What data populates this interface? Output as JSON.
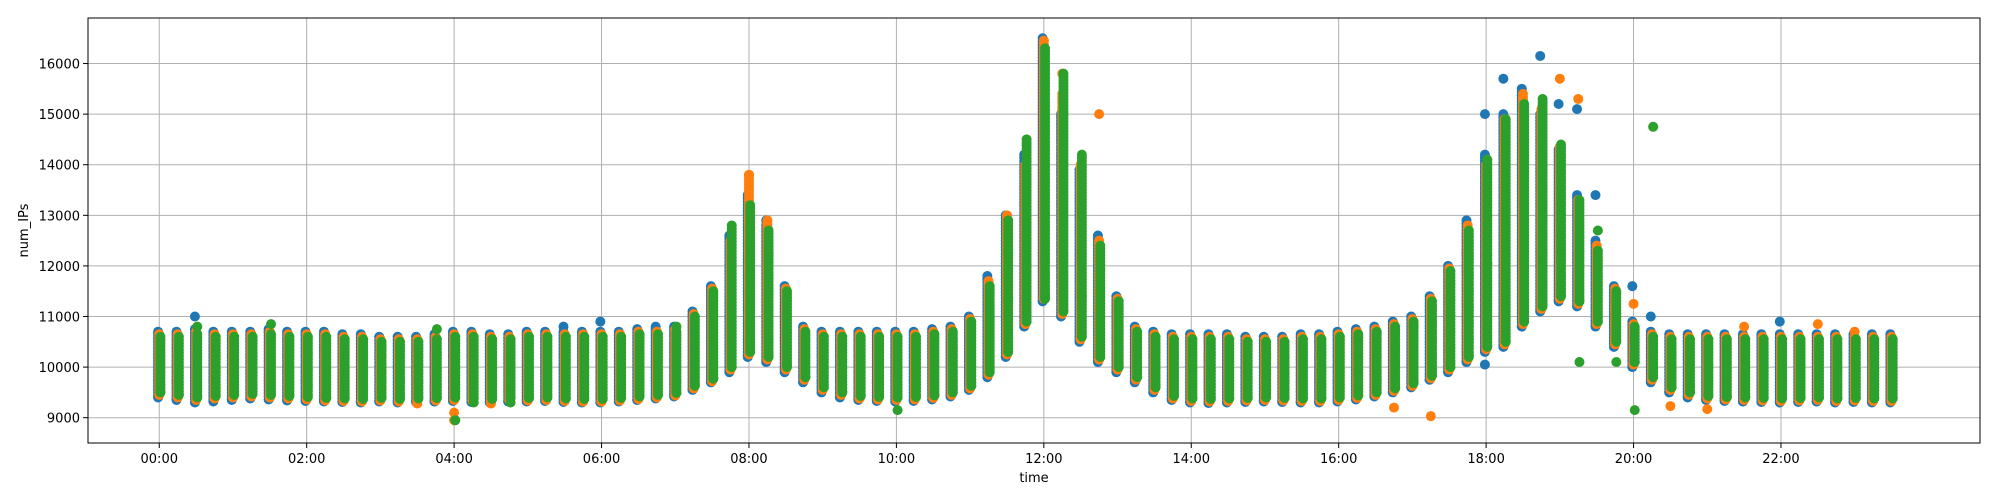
{
  "chart_data": {
    "type": "scatter",
    "title": "",
    "xlabel": "time",
    "ylabel": "num_IPs",
    "grid": true,
    "legend": "none",
    "x_unit": "minutes since 00:00",
    "xlim": [
      -58,
      1482
    ],
    "ylim": [
      8500,
      16900
    ],
    "x_ticks": [
      {
        "value": 0,
        "label": "00:00"
      },
      {
        "value": 120,
        "label": "02:00"
      },
      {
        "value": 240,
        "label": "04:00"
      },
      {
        "value": 360,
        "label": "06:00"
      },
      {
        "value": 480,
        "label": "08:00"
      },
      {
        "value": 600,
        "label": "10:00"
      },
      {
        "value": 720,
        "label": "12:00"
      },
      {
        "value": 840,
        "label": "14:00"
      },
      {
        "value": 960,
        "label": "16:00"
      },
      {
        "value": 1080,
        "label": "18:00"
      },
      {
        "value": 1200,
        "label": "20:00"
      },
      {
        "value": 1320,
        "label": "22:00"
      }
    ],
    "y_ticks": [
      {
        "value": 9000,
        "label": "9000"
      },
      {
        "value": 10000,
        "label": "10000"
      },
      {
        "value": 11000,
        "label": "11000"
      },
      {
        "value": 12000,
        "label": "12000"
      },
      {
        "value": 13000,
        "label": "13000"
      },
      {
        "value": 14000,
        "label": "14000"
      },
      {
        "value": 15000,
        "label": "15000"
      },
      {
        "value": 16000,
        "label": "16000"
      }
    ],
    "interval_minutes": 15,
    "series": [
      {
        "name": "series-1",
        "color": "#1f77b4",
        "x": [
          0,
          15,
          30,
          45,
          60,
          75,
          90,
          105,
          120,
          135,
          150,
          165,
          180,
          195,
          210,
          225,
          240,
          255,
          270,
          285,
          300,
          315,
          330,
          345,
          360,
          375,
          390,
          405,
          420,
          435,
          450,
          465,
          480,
          495,
          510,
          525,
          540,
          555,
          570,
          585,
          600,
          615,
          630,
          645,
          660,
          675,
          690,
          705,
          720,
          735,
          750,
          765,
          780,
          795,
          810,
          825,
          840,
          855,
          870,
          885,
          900,
          915,
          930,
          945,
          960,
          975,
          990,
          1005,
          1020,
          1035,
          1050,
          1065,
          1080,
          1095,
          1110,
          1125,
          1140,
          1155,
          1170,
          1185,
          1200,
          1215,
          1230,
          1245,
          1260,
          1275,
          1290,
          1305,
          1320,
          1335,
          1350,
          1365,
          1380,
          1395,
          1410
        ],
        "low": [
          9400,
          9350,
          9300,
          9320,
          9350,
          9380,
          9360,
          9340,
          9330,
          9320,
          9310,
          9300,
          9320,
          9300,
          9310,
          9320,
          9330,
          9310,
          9300,
          9320,
          9320,
          9330,
          9310,
          9300,
          9300,
          9320,
          9350,
          9380,
          9420,
          9550,
          9700,
          9900,
          10200,
          10100,
          9900,
          9700,
          9500,
          9400,
          9350,
          9330,
          9320,
          9330,
          9360,
          9420,
          9550,
          9800,
          10200,
          10800,
          11300,
          11000,
          10500,
          10100,
          9900,
          9700,
          9500,
          9350,
          9300,
          9290,
          9300,
          9310,
          9320,
          9310,
          9300,
          9300,
          9320,
          9360,
          9420,
          9500,
          9600,
          9750,
          9900,
          10100,
          10300,
          10400,
          10800,
          11100,
          11300,
          11200,
          10800,
          10400,
          10000,
          9700,
          9500,
          9400,
          9350,
          9330,
          9320,
          9310,
          9300,
          9310,
          9320,
          9300,
          9310,
          9300,
          9300
        ],
        "high": [
          10700,
          10700,
          10750,
          10700,
          10700,
          10700,
          10750,
          10700,
          10700,
          10700,
          10650,
          10650,
          10600,
          10600,
          10600,
          10650,
          10700,
          10700,
          10650,
          10650,
          10700,
          10700,
          10700,
          10700,
          10700,
          10700,
          10750,
          10750,
          10800,
          11100,
          11600,
          12600,
          13400,
          12800,
          11600,
          10800,
          10700,
          10700,
          10700,
          10700,
          10700,
          10700,
          10750,
          10800,
          11000,
          11800,
          13000,
          14200,
          16500,
          15000,
          13900,
          12600,
          11400,
          10800,
          10700,
          10650,
          10650,
          10650,
          10650,
          10600,
          10600,
          10600,
          10650,
          10650,
          10700,
          10750,
          10800,
          10900,
          11000,
          11400,
          12000,
          12900,
          14200,
          15000,
          15500,
          15000,
          14300,
          13400,
          12500,
          11600,
          10900,
          10700,
          10650,
          10650,
          10650,
          10650,
          10650,
          10650,
          10650,
          10650,
          10650,
          10650,
          10650,
          10650,
          10650
        ],
        "outliers": [
          [
            30,
            11000
          ],
          [
            90,
            10700
          ],
          [
            330,
            10800
          ],
          [
            360,
            10900
          ],
          [
            405,
            10800
          ],
          [
            495,
            12900
          ],
          [
            1080,
            15000
          ],
          [
            1095,
            15700
          ],
          [
            1125,
            16150
          ],
          [
            1140,
            15200
          ],
          [
            1155,
            15100
          ],
          [
            1170,
            13400
          ],
          [
            1080,
            10050
          ],
          [
            1200,
            11600
          ],
          [
            1215,
            11000
          ],
          [
            1320,
            10900
          ]
        ]
      },
      {
        "name": "series-2",
        "color": "#ff7f0e",
        "x": [
          0,
          15,
          30,
          45,
          60,
          75,
          90,
          105,
          120,
          135,
          150,
          165,
          180,
          195,
          210,
          225,
          240,
          255,
          270,
          285,
          300,
          315,
          330,
          345,
          360,
          375,
          390,
          405,
          420,
          435,
          450,
          465,
          480,
          495,
          510,
          525,
          540,
          555,
          570,
          585,
          600,
          615,
          630,
          645,
          660,
          675,
          690,
          705,
          720,
          735,
          750,
          765,
          780,
          795,
          810,
          825,
          840,
          855,
          870,
          885,
          900,
          915,
          930,
          945,
          960,
          975,
          990,
          1005,
          1020,
          1035,
          1050,
          1065,
          1080,
          1095,
          1110,
          1125,
          1140,
          1155,
          1170,
          1185,
          1200,
          1215,
          1230,
          1245,
          1260,
          1275,
          1290,
          1305,
          1320,
          1335,
          1350,
          1365,
          1380,
          1395,
          1410
        ],
        "low": [
          9450,
          9400,
          9350,
          9380,
          9400,
          9420,
          9400,
          9380,
          9360,
          9340,
          9330,
          9320,
          9340,
          9320,
          9330,
          9340,
          9350,
          9330,
          9320,
          9340,
          9340,
          9350,
          9330,
          9320,
          9320,
          9340,
          9370,
          9400,
          9440,
          9580,
          9720,
          9950,
          10250,
          10150,
          9950,
          9750,
          9550,
          9450,
          9380,
          9360,
          9350,
          9360,
          9390,
          9450,
          9580,
          9850,
          10250,
          10850,
          11350,
          11050,
          10550,
          10150,
          9950,
          9750,
          9550,
          9380,
          9330,
          9320,
          9330,
          9340,
          9350,
          9340,
          9330,
          9330,
          9350,
          9390,
          9450,
          9530,
          9630,
          9780,
          9950,
          10150,
          10350,
          10450,
          10850,
          11150,
          11350,
          11250,
          10850,
          10450,
          10050,
          9750,
          9550,
          9450,
          9380,
          9360,
          9350,
          9340,
          9330,
          9340,
          9350,
          9330,
          9340,
          9330,
          9330
        ],
        "high": [
          10650,
          10650,
          10700,
          10650,
          10650,
          10650,
          10700,
          10650,
          10650,
          10650,
          10600,
          10600,
          10550,
          10550,
          10550,
          10600,
          10650,
          10650,
          10600,
          10600,
          10650,
          10650,
          10650,
          10650,
          10650,
          10650,
          10700,
          10700,
          10750,
          11050,
          11550,
          12500,
          13800,
          12900,
          11550,
          10750,
          10650,
          10650,
          10650,
          10650,
          10650,
          10650,
          10700,
          10750,
          10950,
          11700,
          13000,
          14000,
          16450,
          15400,
          14000,
          12500,
          11350,
          10750,
          10650,
          10600,
          10600,
          10600,
          10600,
          10550,
          10550,
          10550,
          10600,
          10600,
          10650,
          10700,
          10750,
          10850,
          10950,
          11350,
          11950,
          12800,
          14000,
          14900,
          15400,
          15100,
          14350,
          13300,
          12400,
          11550,
          10850,
          10650,
          10600,
          10600,
          10600,
          10600,
          10600,
          10600,
          10600,
          10600,
          10600,
          10600,
          10600,
          10600,
          10600
        ],
        "outliers": [
          [
            240,
            8950
          ],
          [
            240,
            9100
          ],
          [
            210,
            9280
          ],
          [
            270,
            9280
          ],
          [
            1035,
            9030
          ],
          [
            1005,
            9200
          ],
          [
            480,
            13800
          ],
          [
            705,
            13000
          ],
          [
            720,
            16450
          ],
          [
            735,
            15800
          ],
          [
            765,
            15000
          ],
          [
            1080,
            13700
          ],
          [
            1140,
            15700
          ],
          [
            1155,
            15300
          ],
          [
            1200,
            11250
          ],
          [
            1260,
            9170
          ],
          [
            1290,
            10800
          ],
          [
            1350,
            10850
          ],
          [
            1380,
            10700
          ],
          [
            1230,
            9230
          ]
        ]
      },
      {
        "name": "series-3",
        "color": "#2ca02c",
        "x": [
          0,
          15,
          30,
          45,
          60,
          75,
          90,
          105,
          120,
          135,
          150,
          165,
          180,
          195,
          210,
          225,
          240,
          255,
          270,
          285,
          300,
          315,
          330,
          345,
          360,
          375,
          390,
          405,
          420,
          435,
          450,
          465,
          480,
          495,
          510,
          525,
          540,
          555,
          570,
          585,
          600,
          615,
          630,
          645,
          660,
          675,
          690,
          705,
          720,
          735,
          750,
          765,
          780,
          795,
          810,
          825,
          840,
          855,
          870,
          885,
          900,
          915,
          930,
          945,
          960,
          975,
          990,
          1005,
          1020,
          1035,
          1050,
          1065,
          1080,
          1095,
          1110,
          1125,
          1140,
          1155,
          1170,
          1185,
          1200,
          1215,
          1230,
          1245,
          1260,
          1275,
          1290,
          1305,
          1320,
          1335,
          1350,
          1365,
          1380,
          1395,
          1410
        ],
        "low": [
          9500,
          9450,
          9400,
          9430,
          9450,
          9470,
          9450,
          9430,
          9410,
          9390,
          9380,
          9370,
          9390,
          9370,
          9380,
          9390,
          9400,
          9380,
          9370,
          9390,
          9390,
          9400,
          9380,
          9370,
          9370,
          9390,
          9420,
          9450,
          9490,
          9630,
          9770,
          10000,
          10300,
          10200,
          10000,
          9800,
          9600,
          9500,
          9430,
          9410,
          9400,
          9410,
          9440,
          9500,
          9630,
          9900,
          10300,
          10900,
          11400,
          11100,
          10600,
          10200,
          10000,
          9800,
          9600,
          9430,
          9380,
          9370,
          9380,
          9390,
          9400,
          9390,
          9380,
          9380,
          9400,
          9440,
          9500,
          9580,
          9680,
          9830,
          10000,
          10200,
          10400,
          10500,
          10900,
          11200,
          11400,
          11300,
          10900,
          10500,
          10100,
          9800,
          9600,
          9500,
          9430,
          9410,
          9400,
          9390,
          9380,
          9390,
          9400,
          9380,
          9390,
          9380,
          9380
        ],
        "high": [
          10600,
          10600,
          10650,
          10600,
          10600,
          10600,
          10650,
          10600,
          10600,
          10600,
          10550,
          10550,
          10500,
          10500,
          10500,
          10550,
          10600,
          10600,
          10550,
          10550,
          10600,
          10600,
          10600,
          10600,
          10600,
          10600,
          10650,
          10650,
          10700,
          11000,
          11500,
          12800,
          13200,
          12700,
          11500,
          10700,
          10600,
          10600,
          10600,
          10600,
          10600,
          10600,
          10650,
          10700,
          10900,
          11600,
          12900,
          14500,
          16300,
          15800,
          14200,
          12400,
          11300,
          10700,
          10600,
          10550,
          10550,
          10550,
          10550,
          10500,
          10500,
          10500,
          10550,
          10550,
          10600,
          10650,
          10700,
          10800,
          10900,
          11300,
          11900,
          12700,
          14100,
          14900,
          15200,
          15300,
          14400,
          13300,
          12300,
          11500,
          10800,
          10600,
          10550,
          10550,
          10550,
          10550,
          10550,
          10550,
          10550,
          10550,
          10550,
          10550,
          10550,
          10550,
          10550
        ],
        "outliers": [
          [
            240,
            8950
          ],
          [
            30,
            10800
          ],
          [
            90,
            10850
          ],
          [
            225,
            10750
          ],
          [
            255,
            9300
          ],
          [
            285,
            9300
          ],
          [
            420,
            10800
          ],
          [
            600,
            9150
          ],
          [
            690,
            11350
          ],
          [
            720,
            11350
          ],
          [
            750,
            11400
          ],
          [
            1200,
            9150
          ],
          [
            1080,
            12050
          ],
          [
            1155,
            10100
          ],
          [
            1185,
            10100
          ],
          [
            1110,
            14500
          ],
          [
            1215,
            14750
          ],
          [
            1170,
            12700
          ],
          [
            1020,
            10800
          ]
        ]
      }
    ]
  }
}
